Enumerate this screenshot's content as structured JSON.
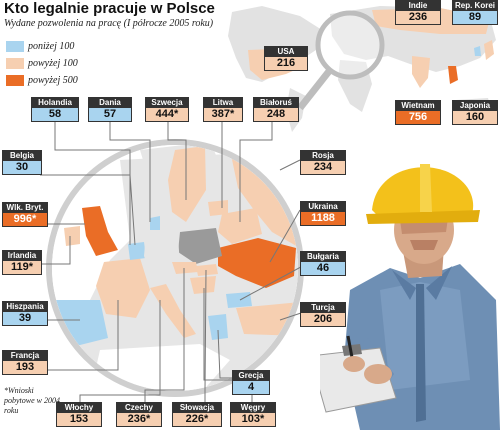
{
  "title": "Kto legalnie pracuje w Polsce",
  "subtitle": "Wydane pozwolenia na pracę (I półrocze 2005 roku)",
  "legend": [
    {
      "label": "poniżej 100",
      "color": "#a9d4ef"
    },
    {
      "label": "powyżej 100",
      "color": "#f6cfb1"
    },
    {
      "label": "powyżej 500",
      "color": "#ea6d26"
    }
  ],
  "countries": {
    "holandia": {
      "name": "Holandia",
      "value": "58"
    },
    "dania": {
      "name": "Dania",
      "value": "57"
    },
    "szwecja": {
      "name": "Szwecja",
      "value": "444*"
    },
    "litwa": {
      "name": "Litwa",
      "value": "387*"
    },
    "bialorus": {
      "name": "Białoruś",
      "value": "248"
    },
    "belgia": {
      "name": "Belgia",
      "value": "30"
    },
    "wlk_bryt": {
      "name": "Wlk. Bryt.",
      "value": "996*"
    },
    "irlandia": {
      "name": "Irlandia",
      "value": "119*"
    },
    "hiszpania": {
      "name": "Hiszpania",
      "value": "39"
    },
    "francja": {
      "name": "Francja",
      "value": "193"
    },
    "wlochy": {
      "name": "Włochy",
      "value": "153"
    },
    "czechy": {
      "name": "Czechy",
      "value": "236*"
    },
    "slowacja": {
      "name": "Słowacja",
      "value": "226*"
    },
    "wegry": {
      "name": "Węgry",
      "value": "103*"
    },
    "grecja": {
      "name": "Grecja",
      "value": "4"
    },
    "turcja": {
      "name": "Turcja",
      "value": "206"
    },
    "bulgaria": {
      "name": "Bułgaria",
      "value": "46"
    },
    "ukraina": {
      "name": "Ukraina",
      "value": "1188"
    },
    "rosja": {
      "name": "Rosja",
      "value": "234"
    },
    "usa": {
      "name": "USA",
      "value": "216"
    },
    "indie": {
      "name": "Indie",
      "value": "236"
    },
    "rep_korei": {
      "name": "Rep. Korei",
      "value": "89"
    },
    "wietnam": {
      "name": "Wietnam",
      "value": "756"
    },
    "japonia": {
      "name": "Japonia",
      "value": "160"
    }
  },
  "note": "*Wnioski pobytowe w 2004 roku"
}
